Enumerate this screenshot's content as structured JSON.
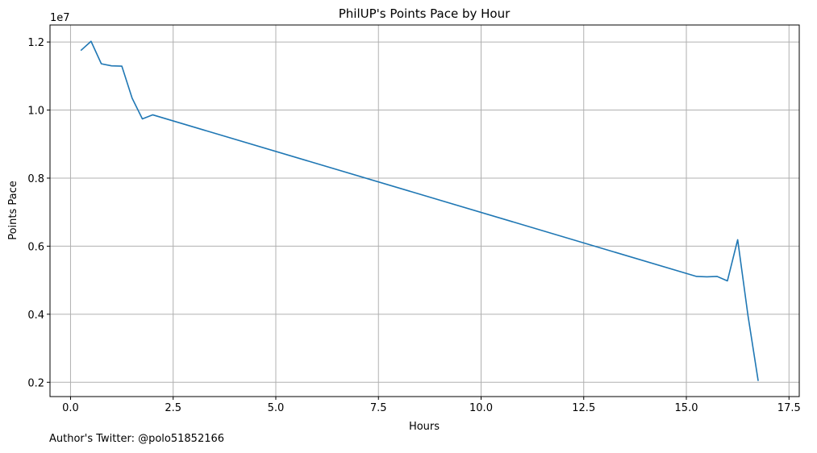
{
  "chart_data": {
    "type": "line",
    "title": "PhilUP's Points Pace by Hour",
    "xlabel": "Hours",
    "ylabel": "Points Pace",
    "y_scale_label": "1e7",
    "xlim": [
      -0.5,
      17.75
    ],
    "ylim": [
      1.58,
      12.5
    ],
    "x_ticks": [
      0.0,
      2.5,
      5.0,
      7.5,
      10.0,
      12.5,
      15.0,
      17.5
    ],
    "x_tick_labels": [
      "0.0",
      "2.5",
      "5.0",
      "7.5",
      "10.0",
      "12.5",
      "15.0",
      "17.5"
    ],
    "y_ticks": [
      2,
      4,
      6,
      8,
      10,
      12
    ],
    "y_tick_labels": [
      "0.2",
      "0.4",
      "0.6",
      "0.8",
      "1.0",
      "1.2"
    ],
    "grid": true,
    "line_color": "#1f77b4",
    "grid_color": "#b0b0b0",
    "series": [
      {
        "x": [
          0.25,
          0.5,
          0.75,
          1.0,
          1.25,
          1.5,
          1.75,
          2.0,
          15.25,
          15.5,
          15.75,
          16.0,
          16.25,
          16.5,
          16.75
        ],
        "values": [
          11.75,
          12.02,
          11.36,
          11.3,
          11.29,
          10.35,
          9.74,
          9.86,
          5.11,
          5.1,
          5.11,
          4.98,
          6.19,
          3.97,
          2.04
        ]
      }
    ]
  },
  "footnote": "Author's Twitter: @polo51852166"
}
